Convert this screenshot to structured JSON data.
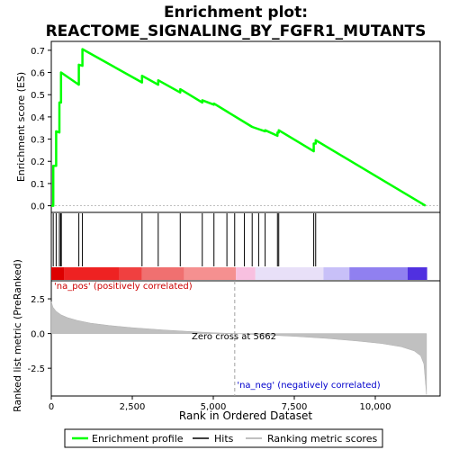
{
  "chart_data": {
    "type": "line",
    "title_lines": [
      "Enrichment plot:",
      "REACTOME_SIGNALING_BY_FGFR1_MUTANTS"
    ],
    "es_panel": {
      "ylabel": "Enrichment score (ES)",
      "ylim": [
        -0.03,
        0.74
      ],
      "yticks": [
        0.0,
        0.1,
        0.2,
        0.3,
        0.4,
        0.5,
        0.6,
        0.7
      ],
      "ytick_labels": [
        "0.0",
        "0.1",
        "0.2",
        "0.3",
        "0.4",
        "0.5",
        "0.6",
        "0.7"
      ],
      "line_color": "#00ff00",
      "series": [
        {
          "x": [
            0,
            60,
            60,
            150,
            150,
            250,
            250,
            300,
            300,
            850,
            850,
            960,
            960,
            2800,
            2800,
            3300,
            3300,
            3980,
            3980,
            4660,
            4660,
            5020,
            5020,
            6200,
            6200,
            6400,
            6400,
            6600,
            6600,
            6980,
            6980,
            7020,
            7020,
            8100,
            8100,
            8160,
            8160,
            11550
          ],
          "y": [
            0.0,
            0.0,
            0.18,
            0.18,
            0.335,
            0.33,
            0.465,
            0.465,
            0.6,
            0.545,
            0.635,
            0.63,
            0.705,
            0.555,
            0.585,
            0.545,
            0.565,
            0.51,
            0.525,
            0.465,
            0.475,
            0.455,
            0.46,
            0.355,
            0.355,
            0.345,
            0.345,
            0.335,
            0.34,
            0.315,
            0.33,
            0.33,
            0.34,
            0.245,
            0.28,
            0.28,
            0.295,
            0.0
          ]
        }
      ]
    },
    "hits_panel": {
      "hit_positions": [
        60,
        150,
        250,
        290,
        310,
        850,
        960,
        2800,
        3300,
        3980,
        4660,
        5020,
        5420,
        5660,
        5960,
        6200,
        6400,
        6600,
        6980,
        7020,
        8100,
        8160
      ],
      "heat_colors": [
        "#dd0000",
        "#ee2222",
        "#f04040",
        "#f07070",
        "#f59090",
        "#f8c0e0",
        "#e8e0f8",
        "#c8c0f8",
        "#9080f0",
        "#5030e0",
        "#3010c0"
      ],
      "heat_stops": [
        0,
        400,
        2100,
        2800,
        4100,
        5700,
        6300,
        8400,
        9200,
        11000,
        11600
      ]
    },
    "rank_panel": {
      "ylabel": "Ranked list metric (PreRanked)",
      "xlabel": "Rank in Ordered Dataset",
      "xlim": [
        0,
        12000
      ],
      "xticks": [
        0,
        2500,
        5000,
        7500,
        10000
      ],
      "xtick_labels": [
        "0",
        "2,500",
        "5,000",
        "7,500",
        "10,000"
      ],
      "ylim": [
        -4.5,
        3.8
      ],
      "yticks": [
        2.5,
        0.0,
        -2.5
      ],
      "ytick_labels": [
        "2.5",
        "0.0",
        "-2.5"
      ],
      "metric_points": {
        "x": [
          0,
          50,
          150,
          300,
          500,
          800,
          1200,
          1800,
          2500,
          3500,
          4500,
          5000,
          5662,
          6500,
          7500,
          8500,
          9500,
          10200,
          10800,
          11200,
          11400,
          11500,
          11580
        ],
        "y": [
          2.3,
          1.9,
          1.6,
          1.35,
          1.15,
          0.95,
          0.75,
          0.58,
          0.42,
          0.25,
          0.12,
          0.06,
          0.0,
          -0.09,
          -0.2,
          -0.35,
          -0.55,
          -0.72,
          -0.95,
          -1.25,
          -1.6,
          -2.2,
          -4.4
        ]
      },
      "zero_cross": 5662,
      "zero_cross_label": "Zero cross at 5662",
      "pos_label": "'na_pos' (positively correlated)",
      "neg_label": "'na_neg' (negatively correlated)",
      "pos_color": "#cc0000",
      "neg_color": "#0000cc"
    },
    "legend": {
      "placement": "bottom",
      "entries": [
        {
          "label": "Enrichment profile",
          "color": "#00ff00"
        },
        {
          "label": "Hits",
          "color": "#000000"
        },
        {
          "label": "Ranking metric scores",
          "color": "#c0c0c0"
        }
      ]
    }
  }
}
